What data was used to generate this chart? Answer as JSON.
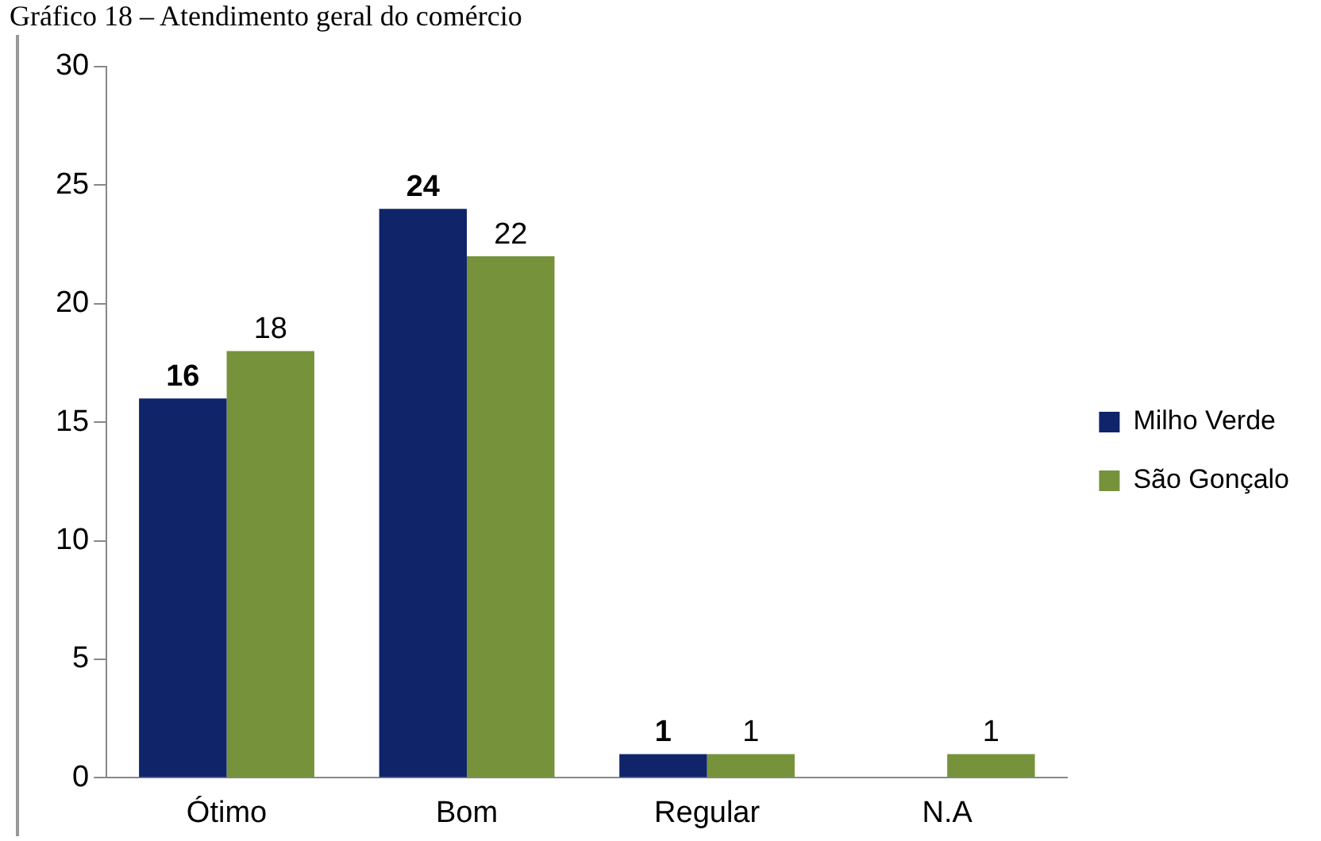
{
  "chart_data": {
    "type": "bar",
    "title": "Gráfico 18 – Atendimento geral do comércio",
    "categories": [
      "Ótimo",
      "Bom",
      "Regular",
      "N.A"
    ],
    "series": [
      {
        "name": "Milho Verde",
        "color": "#10246a",
        "values": [
          16,
          24,
          1,
          0
        ],
        "value_labels": [
          "16",
          "24",
          "1",
          null
        ]
      },
      {
        "name": "São Gonçalo",
        "color": "#76933c",
        "values": [
          18,
          22,
          1,
          1
        ],
        "value_labels": [
          "18",
          "22",
          "1",
          "1"
        ]
      }
    ],
    "ylim": [
      0,
      30
    ],
    "yticks": [
      0,
      5,
      10,
      15,
      20,
      25,
      30
    ],
    "grid": false,
    "legend": "right"
  }
}
